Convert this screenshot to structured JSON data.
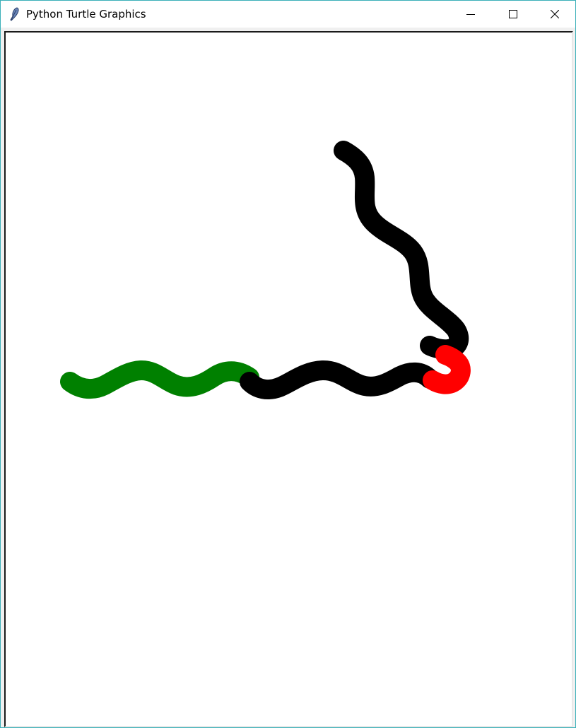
{
  "window": {
    "title": "Python Turtle Graphics",
    "icon": "feather-icon",
    "controls": [
      "minimize-icon",
      "maximize-icon",
      "close-icon"
    ]
  },
  "canvas": {
    "background": "#ffffff",
    "strokes": [
      {
        "name": "green-wave-segment",
        "color": "#008000"
      },
      {
        "name": "black-wave-segment",
        "color": "#000000"
      },
      {
        "name": "red-curl-segment",
        "color": "#ff0000"
      },
      {
        "name": "black-vertical-wave-segment",
        "color": "#000000"
      }
    ]
  }
}
